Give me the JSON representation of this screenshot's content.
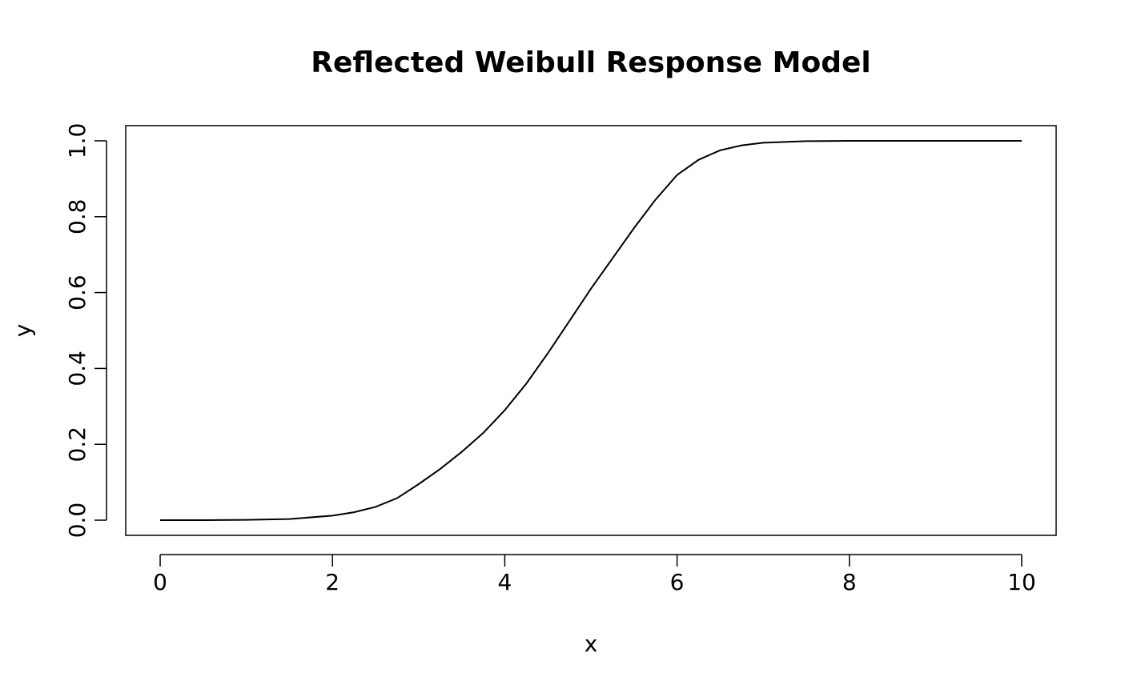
{
  "chart_data": {
    "type": "line",
    "title": "Reflected Weibull Response Model",
    "x_label": "x",
    "y_label": "y",
    "x": [
      0,
      0.5,
      1,
      1.5,
      2,
      2.25,
      2.5,
      2.75,
      3,
      3.25,
      3.5,
      3.75,
      4,
      4.25,
      4.5,
      4.75,
      5,
      5.25,
      5.5,
      5.75,
      6,
      6.25,
      6.5,
      6.75,
      7,
      7.5,
      8,
      8.5,
      9,
      9.5,
      10
    ],
    "series": [
      {
        "color": "#000000",
        "values": [
          0,
          0,
          0.001,
          0.003,
          0.012,
          0.021,
          0.035,
          0.058,
          0.095,
          0.135,
          0.18,
          0.23,
          0.29,
          0.36,
          0.44,
          0.525,
          0.61,
          0.69,
          0.77,
          0.845,
          0.91,
          0.95,
          0.975,
          0.988,
          0.995,
          0.999,
          1,
          1,
          1,
          1,
          1
        ]
      }
    ],
    "xlim": [
      -0.4,
      10.4
    ],
    "ylim": [
      -0.04,
      1.04
    ],
    "xticks": [
      0,
      2,
      4,
      6,
      8,
      10
    ],
    "yticks": [
      {
        "value": 0,
        "label": "0.0"
      },
      {
        "value": 0.2,
        "label": "0.2"
      },
      {
        "value": 0.4,
        "label": "0.4"
      },
      {
        "value": 0.6,
        "label": "0.6"
      },
      {
        "value": 0.8,
        "label": "0.8"
      },
      {
        "value": 1,
        "label": "1.0"
      }
    ],
    "grid": false
  }
}
